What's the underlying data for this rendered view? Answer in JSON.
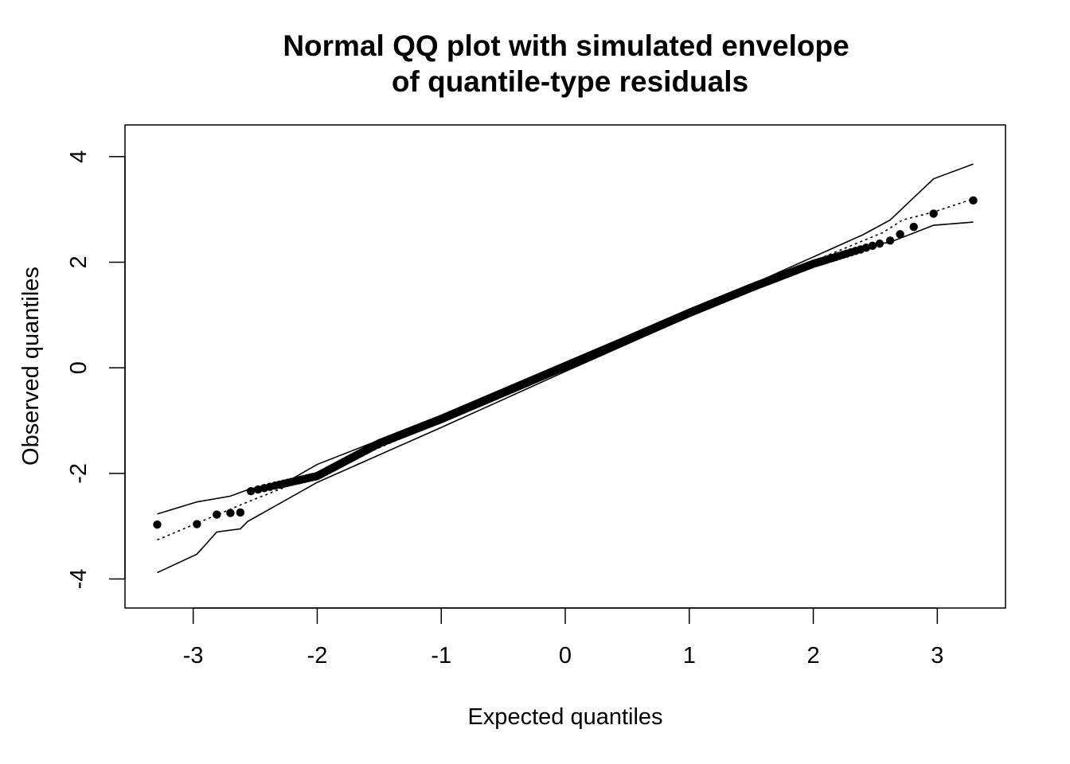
{
  "chart_data": {
    "type": "scatter",
    "title": [
      "Normal QQ plot with simulated envelope",
      "of quantile-type residuals"
    ],
    "xlabel": "Expected quantiles",
    "ylabel": "Observed quantiles",
    "xlim": [
      -3.55,
      3.55
    ],
    "ylim": [
      -4.55,
      4.6
    ],
    "x_ticks": [
      -3,
      -2,
      -1,
      0,
      1,
      2,
      3
    ],
    "x_tick_labels": [
      "-3",
      "-2",
      "-1",
      "0",
      "1",
      "2",
      "3"
    ],
    "y_ticks": [
      -4,
      -2,
      0,
      2,
      4
    ],
    "y_tick_labels": [
      "-4",
      "-2",
      "0",
      "2",
      "4"
    ],
    "grid": false,
    "legend": "none",
    "n_points": 1000,
    "series": [
      {
        "style": "points",
        "marker": "filled-circle",
        "tail_points": [
          [
            -3.29,
            -2.97
          ],
          [
            -2.97,
            -2.96
          ],
          [
            -2.81,
            -2.78
          ],
          [
            -2.7,
            -2.75
          ],
          [
            -2.62,
            -2.74
          ],
          [
            2.62,
            2.41
          ],
          [
            2.7,
            2.53
          ],
          [
            2.81,
            2.67
          ],
          [
            2.97,
            2.92
          ],
          [
            3.29,
            3.17
          ]
        ],
        "body_trend": [
          [
            -2.56,
            -2.35
          ],
          [
            -2.0,
            -2.05
          ],
          [
            -1.5,
            -1.43
          ],
          [
            -1.0,
            -0.97
          ],
          [
            -0.5,
            -0.47
          ],
          [
            0.0,
            0.03
          ],
          [
            0.5,
            0.53
          ],
          [
            1.0,
            1.04
          ],
          [
            1.5,
            1.52
          ],
          [
            2.0,
            1.97
          ],
          [
            2.56,
            2.37
          ]
        ]
      },
      {
        "style": "dotted",
        "points": [
          [
            -3.29,
            -3.26
          ],
          [
            -2.56,
            -2.54
          ],
          [
            -2.0,
            -2.02
          ],
          [
            -1.0,
            -1.01
          ],
          [
            0.0,
            0.0
          ],
          [
            1.0,
            1.01
          ],
          [
            2.0,
            2.02
          ],
          [
            2.56,
            2.56
          ],
          [
            2.72,
            2.8
          ],
          [
            2.97,
            2.95
          ],
          [
            3.29,
            3.2
          ]
        ]
      },
      {
        "style": "solid",
        "points": [
          [
            -3.29,
            -2.77
          ],
          [
            -2.97,
            -2.54
          ],
          [
            -2.7,
            -2.43
          ],
          [
            -2.56,
            -2.31
          ],
          [
            -2.2,
            -2.1
          ],
          [
            -2.0,
            -1.83
          ],
          [
            -1.0,
            -0.91
          ],
          [
            0.0,
            0.06
          ],
          [
            1.0,
            1.05
          ],
          [
            2.0,
            2.1
          ],
          [
            2.4,
            2.52
          ],
          [
            2.62,
            2.8
          ],
          [
            2.97,
            3.58
          ],
          [
            3.29,
            3.86
          ]
        ]
      },
      {
        "style": "solid",
        "points": [
          [
            -3.29,
            -3.88
          ],
          [
            -2.97,
            -3.53
          ],
          [
            -2.81,
            -3.11
          ],
          [
            -2.62,
            -3.05
          ],
          [
            -2.56,
            -2.91
          ],
          [
            -2.0,
            -2.17
          ],
          [
            -1.0,
            -1.13
          ],
          [
            0.0,
            -0.07
          ],
          [
            1.0,
            0.97
          ],
          [
            2.0,
            1.98
          ],
          [
            2.4,
            2.3
          ],
          [
            2.62,
            2.38
          ],
          [
            2.97,
            2.7
          ],
          [
            3.29,
            2.76
          ]
        ]
      }
    ]
  }
}
